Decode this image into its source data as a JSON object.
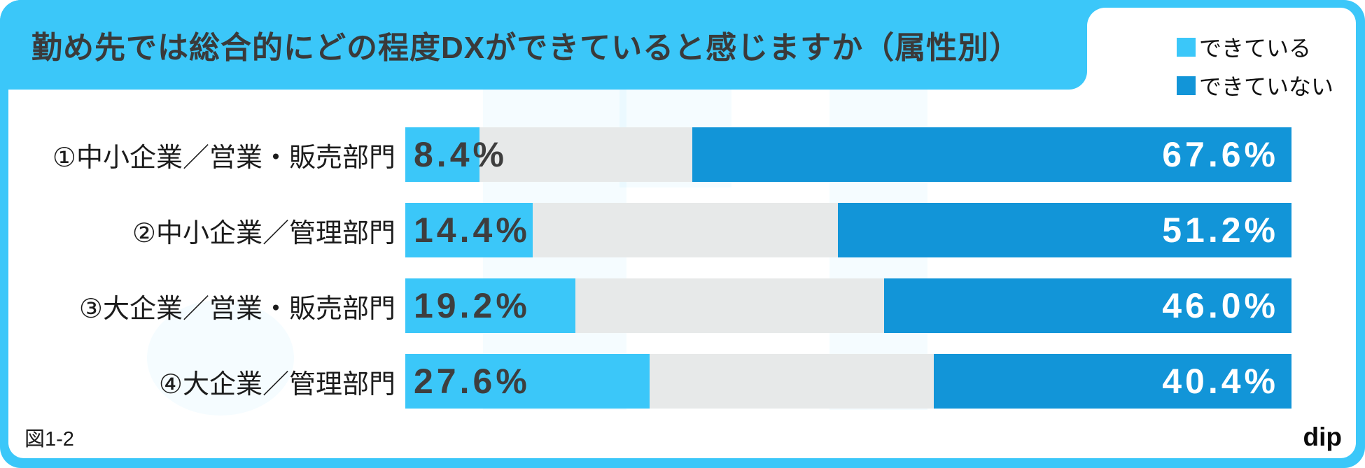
{
  "header": {
    "title": "勤め先では総合的にどの程度DXができていると感じますか（属性別）"
  },
  "legend": {
    "items": [
      {
        "label": "できている",
        "color": "#3BC7F9"
      },
      {
        "label": "できていない",
        "color": "#1295D8"
      }
    ]
  },
  "footer": {
    "figure_label": "図1-2",
    "logo": "dip"
  },
  "colors": {
    "frame_blue": "#3BC7F9",
    "bar_light_blue": "#3BC7F9",
    "bar_dark_blue": "#1295D8",
    "bar_gray": "#E7E9E9",
    "title_text": "#3A3A3A",
    "value_text_dark": "#3E3E3E",
    "value_text_light": "#ffffff"
  },
  "chart_data": {
    "type": "bar",
    "orientation": "horizontal",
    "title": "勤め先では総合的にどの程度DXができていると感じますか（属性別）",
    "categories": [
      "①中小企業／営業・販売部門",
      "②中小企業／管理部門",
      "③大企業／営業・販売部門",
      "④大企業／管理部門"
    ],
    "series": [
      {
        "name": "できている",
        "values": [
          8.4,
          14.4,
          19.2,
          27.6
        ]
      },
      {
        "name": "できていない",
        "values": [
          67.6,
          51.2,
          46.0,
          40.4
        ]
      }
    ],
    "value_suffix": "%",
    "xlim": [
      0,
      100
    ],
    "grid": false,
    "legend_position": "top-right",
    "note": "light series anchored left, dark series anchored right, gray = remainder"
  }
}
